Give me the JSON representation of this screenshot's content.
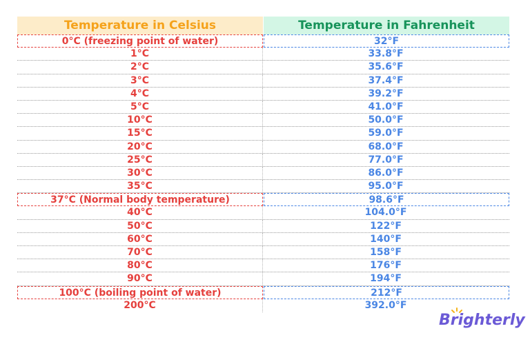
{
  "table": {
    "header": [
      "Temperature in Celsius",
      "Temperature in Fahrenheit"
    ],
    "rows": [
      [
        "0°C (freezing point of water)",
        "32°F"
      ],
      [
        "1°C",
        "33.8°F"
      ],
      [
        "2°C",
        "35.6°F"
      ],
      [
        "3°C",
        "37.4°F"
      ],
      [
        "4°C",
        "39.2°F"
      ],
      [
        "5°C",
        "41.0°F"
      ],
      [
        "10°C",
        "50.0°F"
      ],
      [
        "15°C",
        "59.0°F"
      ],
      [
        "20°C",
        "68.0°F"
      ],
      [
        "25°C",
        "77.0°F"
      ],
      [
        "30°C",
        "86.0°F"
      ],
      [
        "35°C",
        "95.0°F"
      ],
      [
        "37°C (Normal body temperature)",
        "98.6°F"
      ],
      [
        "40°C",
        "104.0°F"
      ],
      [
        "50°C",
        "122°F"
      ],
      [
        "60°C",
        "140°F"
      ],
      [
        "70°C",
        "158°F"
      ],
      [
        "80°C",
        "176°F"
      ],
      [
        "90°C",
        "194°F"
      ],
      [
        "100°C (boiling point of water)",
        "212°F"
      ],
      [
        "200°C",
        "392.0°F"
      ]
    ]
  },
  "logo": "Brighterly"
}
